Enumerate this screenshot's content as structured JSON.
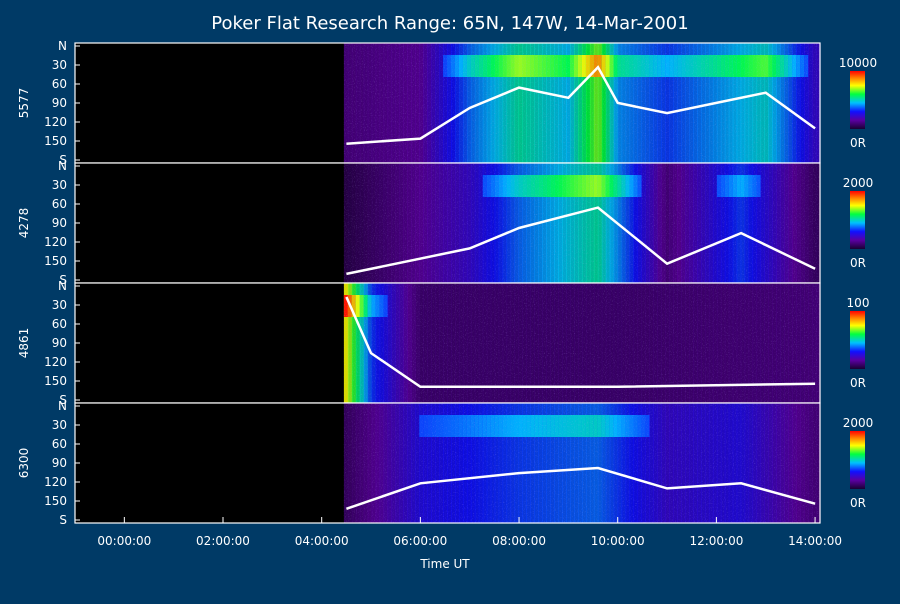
{
  "title": "Poker Flat Research Range: 65N, 147W, 14-Mar-2001",
  "xlabel": "Time UT",
  "x_ticks": [
    "00:00:00",
    "02:00:00",
    "04:00:00",
    "06:00:00",
    "08:00:00",
    "10:00:00",
    "12:00:00",
    "14:00:00"
  ],
  "y_ticks": [
    "N",
    "30",
    "60",
    "90",
    "120",
    "150",
    "S"
  ],
  "colors": {
    "background": "#003a66",
    "plot_bg": "#000000",
    "contour": "#ffffff"
  },
  "chart_data": {
    "type": "heatmap",
    "title": "Poker Flat Research Range: 65N, 147W, 14-Mar-2001",
    "xlabel": "Time UT",
    "ylabel": "",
    "x_unit": "hours UT",
    "xlim": [
      -1.0,
      14.1
    ],
    "ylim": [
      0,
      180
    ],
    "data_start_hour": 4.45,
    "panels": [
      {
        "name": "5577",
        "colorbar_max_label": "10000",
        "colorbar_min_label": "0R",
        "vmax": 10000,
        "activity": [
          {
            "time": 4.5,
            "intensity": 0.15
          },
          {
            "time": 6.0,
            "intensity": 0.2
          },
          {
            "time": 7.0,
            "intensity": 0.5
          },
          {
            "time": 8.0,
            "intensity": 0.7
          },
          {
            "time": 9.0,
            "intensity": 0.6
          },
          {
            "time": 9.6,
            "intensity": 0.9
          },
          {
            "time": 10.0,
            "intensity": 0.55
          },
          {
            "time": 11.0,
            "intensity": 0.45
          },
          {
            "time": 12.0,
            "intensity": 0.55
          },
          {
            "time": 13.0,
            "intensity": 0.65
          },
          {
            "time": 14.0,
            "intensity": 0.3
          }
        ]
      },
      {
        "name": "4278",
        "colorbar_max_label": "2000",
        "colorbar_min_label": "0R",
        "vmax": 2000,
        "activity": [
          {
            "time": 4.5,
            "intensity": 0.05
          },
          {
            "time": 7.0,
            "intensity": 0.3
          },
          {
            "time": 8.0,
            "intensity": 0.5
          },
          {
            "time": 9.6,
            "intensity": 0.7
          },
          {
            "time": 11.0,
            "intensity": 0.15
          },
          {
            "time": 12.5,
            "intensity": 0.45
          },
          {
            "time": 14.0,
            "intensity": 0.1
          }
        ]
      },
      {
        "name": "4861",
        "colorbar_max_label": "100",
        "colorbar_min_label": "0R",
        "vmax": 100,
        "activity": [
          {
            "time": 4.5,
            "intensity": 1.0
          },
          {
            "time": 5.0,
            "intensity": 0.45
          },
          {
            "time": 6.0,
            "intensity": 0.12
          },
          {
            "time": 10.0,
            "intensity": 0.12
          },
          {
            "time": 14.0,
            "intensity": 0.15
          }
        ]
      },
      {
        "name": "6300",
        "colorbar_max_label": "2000",
        "colorbar_min_label": "0R",
        "vmax": 2000,
        "activity": [
          {
            "time": 4.5,
            "intensity": 0.1
          },
          {
            "time": 6.0,
            "intensity": 0.35
          },
          {
            "time": 8.0,
            "intensity": 0.45
          },
          {
            "time": 9.6,
            "intensity": 0.5
          },
          {
            "time": 11.0,
            "intensity": 0.3
          },
          {
            "time": 12.5,
            "intensity": 0.35
          },
          {
            "time": 14.0,
            "intensity": 0.15
          }
        ]
      }
    ]
  }
}
